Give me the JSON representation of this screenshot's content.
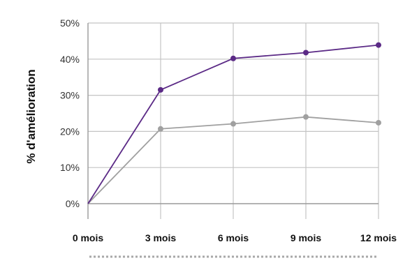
{
  "chart_data": {
    "type": "line",
    "title": "",
    "xlabel": "",
    "ylabel": "% d'amélioration",
    "categories": [
      "0 mois",
      "3 mois",
      "6 mois",
      "9 mois",
      "12 mois"
    ],
    "yticks": [
      "0%",
      "10%",
      "20%",
      "30%",
      "40%",
      "50%"
    ],
    "ylim": [
      0,
      50
    ],
    "grid": true,
    "legend": "none",
    "series": [
      {
        "values": [
          0,
          31.5,
          40.2,
          41.8,
          43.9
        ],
        "color": "#5b2a86"
      },
      {
        "values": [
          0,
          20.7,
          22.1,
          24.0,
          22.4
        ],
        "color": "#a0a0a0"
      }
    ]
  }
}
